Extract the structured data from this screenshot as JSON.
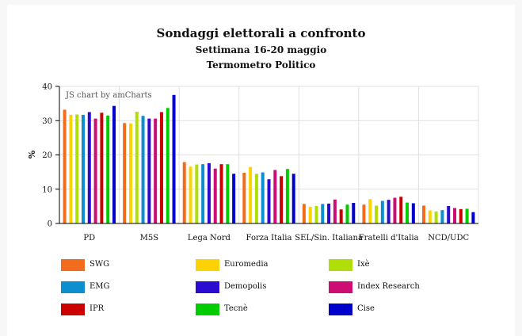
{
  "header": {
    "title": "Sondaggi elettorali a confronto",
    "subtitle1": "Settimana 16-20 maggio",
    "subtitle2": "Termometro Politico"
  },
  "watermark": "JS chart by amCharts",
  "chart_data": {
    "type": "bar",
    "title": "Sondaggi elettorali a confronto",
    "subtitle": "Settimana 16-20 maggio / Termometro Politico",
    "xlabel": "",
    "ylabel": "%",
    "ylim": [
      0,
      40
    ],
    "yticks": [
      0,
      10,
      20,
      30,
      40
    ],
    "grid": true,
    "legend_position": "bottom",
    "categories": [
      "PD",
      "M5S",
      "Lega Nord",
      "Forza Italia",
      "SEL/Sin. Italiana",
      "Fratelli d'Italia",
      "NCD/UDC"
    ],
    "series": [
      {
        "name": "SWG",
        "color": "#f26c1e",
        "values": [
          33.2,
          29.3,
          17.9,
          14.8,
          5.7,
          5.5,
          5.2
        ]
      },
      {
        "name": "Euromedia",
        "color": "#fcd202",
        "values": [
          31.7,
          29.2,
          16.6,
          16.5,
          4.9,
          7.1,
          3.8
        ]
      },
      {
        "name": "Ixè",
        "color": "#b0de09",
        "values": [
          31.8,
          32.6,
          17.2,
          14.5,
          5.1,
          5.2,
          3.5
        ]
      },
      {
        "name": "EMG",
        "color": "#0d8ecf",
        "values": [
          31.7,
          31.4,
          17.3,
          14.9,
          5.7,
          6.6,
          3.9
        ]
      },
      {
        "name": "Demopolis",
        "color": "#2a0cd0",
        "values": [
          32.5,
          30.6,
          17.6,
          12.9,
          5.8,
          6.9,
          5.1
        ]
      },
      {
        "name": "Index Research",
        "color": "#cd0d74",
        "values": [
          30.6,
          30.6,
          16.0,
          15.6,
          7.0,
          7.5,
          4.5
        ]
      },
      {
        "name": "IPR",
        "color": "#cc0000",
        "values": [
          32.3,
          32.5,
          17.3,
          13.8,
          4.1,
          7.8,
          4.2
        ]
      },
      {
        "name": "Tecnè",
        "color": "#00cc00",
        "values": [
          31.5,
          33.7,
          17.3,
          15.9,
          5.5,
          6.1,
          4.3
        ]
      },
      {
        "name": "Cise",
        "color": "#0000cc",
        "values": [
          34.3,
          37.5,
          14.5,
          14.5,
          6.0,
          5.9,
          3.3
        ]
      }
    ]
  }
}
